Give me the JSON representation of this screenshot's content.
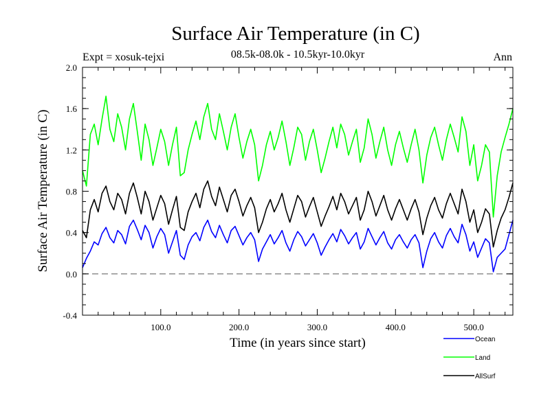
{
  "chart_data": {
    "type": "line",
    "title": "Surface Air Temperature (in C)",
    "subtitle": "08.5k-08.0k - 10.5kyr-10.0kyr",
    "expt_label": "Expt = xosuk-tejxi",
    "season_label": "Ann",
    "xlabel": "Time (in years since start)",
    "ylabel": "Surface Air Temperature (in C)",
    "xlim": [
      0,
      550
    ],
    "ylim": [
      -0.4,
      2.0
    ],
    "x_ticks": [
      100,
      200,
      300,
      400,
      500
    ],
    "x_tick_labels": [
      "100.0",
      "200.0",
      "300.0",
      "400.0",
      "500.0"
    ],
    "y_ticks": [
      -0.4,
      0.0,
      0.4,
      0.8,
      1.2,
      1.6,
      2.0
    ],
    "y_tick_labels": [
      "-0.4",
      "0.0",
      "0.4",
      "0.8",
      "1.2",
      "1.6",
      "2.0"
    ],
    "zero_line": 0.0,
    "x": [
      0,
      5,
      10,
      15,
      20,
      25,
      30,
      35,
      40,
      45,
      50,
      55,
      60,
      65,
      70,
      75,
      80,
      85,
      90,
      95,
      100,
      105,
      110,
      115,
      120,
      125,
      130,
      135,
      140,
      145,
      150,
      155,
      160,
      165,
      170,
      175,
      180,
      185,
      190,
      195,
      200,
      205,
      210,
      215,
      220,
      225,
      230,
      235,
      240,
      245,
      250,
      255,
      260,
      265,
      270,
      275,
      280,
      285,
      290,
      295,
      300,
      305,
      310,
      315,
      320,
      325,
      330,
      335,
      340,
      345,
      350,
      355,
      360,
      365,
      370,
      375,
      380,
      385,
      390,
      395,
      400,
      405,
      410,
      415,
      420,
      425,
      430,
      435,
      440,
      445,
      450,
      455,
      460,
      465,
      470,
      475,
      480,
      485,
      490,
      495,
      500,
      505,
      510,
      515,
      520,
      525,
      530,
      535,
      540,
      545,
      550
    ],
    "series": [
      {
        "name": "Ocean",
        "color": "#0000ff",
        "values": [
          0.06,
          0.15,
          0.22,
          0.31,
          0.28,
          0.39,
          0.45,
          0.35,
          0.3,
          0.42,
          0.38,
          0.29,
          0.46,
          0.52,
          0.43,
          0.33,
          0.47,
          0.4,
          0.25,
          0.36,
          0.44,
          0.38,
          0.2,
          0.31,
          0.42,
          0.18,
          0.14,
          0.28,
          0.36,
          0.4,
          0.32,
          0.45,
          0.52,
          0.41,
          0.35,
          0.47,
          0.38,
          0.3,
          0.42,
          0.46,
          0.37,
          0.28,
          0.35,
          0.4,
          0.33,
          0.12,
          0.24,
          0.31,
          0.38,
          0.29,
          0.35,
          0.42,
          0.3,
          0.22,
          0.33,
          0.41,
          0.36,
          0.27,
          0.33,
          0.39,
          0.3,
          0.18,
          0.26,
          0.33,
          0.39,
          0.31,
          0.43,
          0.37,
          0.29,
          0.35,
          0.4,
          0.24,
          0.31,
          0.44,
          0.36,
          0.28,
          0.35,
          0.41,
          0.3,
          0.24,
          0.33,
          0.38,
          0.31,
          0.25,
          0.33,
          0.38,
          0.3,
          0.06,
          0.22,
          0.34,
          0.4,
          0.31,
          0.25,
          0.37,
          0.44,
          0.36,
          0.3,
          0.48,
          0.38,
          0.22,
          0.31,
          0.16,
          0.25,
          0.34,
          0.3,
          0.02,
          0.16,
          0.2,
          0.24,
          0.38,
          0.52
        ]
      },
      {
        "name": "Land",
        "color": "#00ff00",
        "values": [
          1.0,
          0.85,
          1.35,
          1.45,
          1.25,
          1.5,
          1.72,
          1.4,
          1.28,
          1.55,
          1.42,
          1.2,
          1.5,
          1.65,
          1.38,
          1.1,
          1.45,
          1.3,
          1.05,
          1.22,
          1.4,
          1.28,
          1.05,
          1.25,
          1.42,
          0.95,
          0.98,
          1.2,
          1.35,
          1.48,
          1.3,
          1.52,
          1.65,
          1.4,
          1.3,
          1.55,
          1.38,
          1.2,
          1.42,
          1.55,
          1.32,
          1.12,
          1.28,
          1.4,
          1.25,
          0.9,
          1.05,
          1.25,
          1.38,
          1.2,
          1.32,
          1.48,
          1.28,
          1.05,
          1.22,
          1.42,
          1.35,
          1.1,
          1.28,
          1.4,
          1.2,
          0.98,
          1.12,
          1.28,
          1.42,
          1.22,
          1.45,
          1.35,
          1.15,
          1.28,
          1.4,
          1.08,
          1.22,
          1.5,
          1.35,
          1.12,
          1.28,
          1.42,
          1.2,
          1.05,
          1.25,
          1.38,
          1.22,
          1.08,
          1.25,
          1.4,
          1.2,
          0.88,
          1.15,
          1.32,
          1.42,
          1.25,
          1.1,
          1.3,
          1.45,
          1.32,
          1.18,
          1.52,
          1.38,
          1.05,
          1.25,
          0.9,
          1.05,
          1.25,
          1.18,
          0.55,
          0.95,
          1.18,
          1.32,
          1.45,
          1.6
        ]
      },
      {
        "name": "AllSurf",
        "color": "#000000",
        "values": [
          0.42,
          0.35,
          0.62,
          0.72,
          0.6,
          0.78,
          0.85,
          0.7,
          0.62,
          0.78,
          0.72,
          0.58,
          0.78,
          0.88,
          0.74,
          0.58,
          0.8,
          0.7,
          0.52,
          0.64,
          0.76,
          0.68,
          0.48,
          0.62,
          0.75,
          0.45,
          0.42,
          0.6,
          0.7,
          0.78,
          0.64,
          0.82,
          0.9,
          0.75,
          0.66,
          0.84,
          0.72,
          0.6,
          0.76,
          0.82,
          0.7,
          0.56,
          0.66,
          0.74,
          0.64,
          0.4,
          0.5,
          0.63,
          0.72,
          0.6,
          0.68,
          0.78,
          0.62,
          0.5,
          0.63,
          0.76,
          0.7,
          0.55,
          0.65,
          0.74,
          0.6,
          0.46,
          0.56,
          0.65,
          0.75,
          0.62,
          0.78,
          0.7,
          0.58,
          0.66,
          0.74,
          0.52,
          0.62,
          0.8,
          0.7,
          0.56,
          0.66,
          0.76,
          0.62,
          0.52,
          0.63,
          0.72,
          0.62,
          0.52,
          0.63,
          0.72,
          0.6,
          0.38,
          0.54,
          0.66,
          0.74,
          0.62,
          0.54,
          0.68,
          0.78,
          0.68,
          0.58,
          0.82,
          0.7,
          0.5,
          0.62,
          0.4,
          0.5,
          0.63,
          0.58,
          0.26,
          0.42,
          0.54,
          0.62,
          0.74,
          0.88
        ]
      }
    ],
    "legend": [
      {
        "label": "Ocean",
        "color": "#0000ff"
      },
      {
        "label": "Land",
        "color": "#00ff00"
      },
      {
        "label": "AllSurf",
        "color": "#000000"
      }
    ],
    "legend_position": "bottom-right"
  }
}
